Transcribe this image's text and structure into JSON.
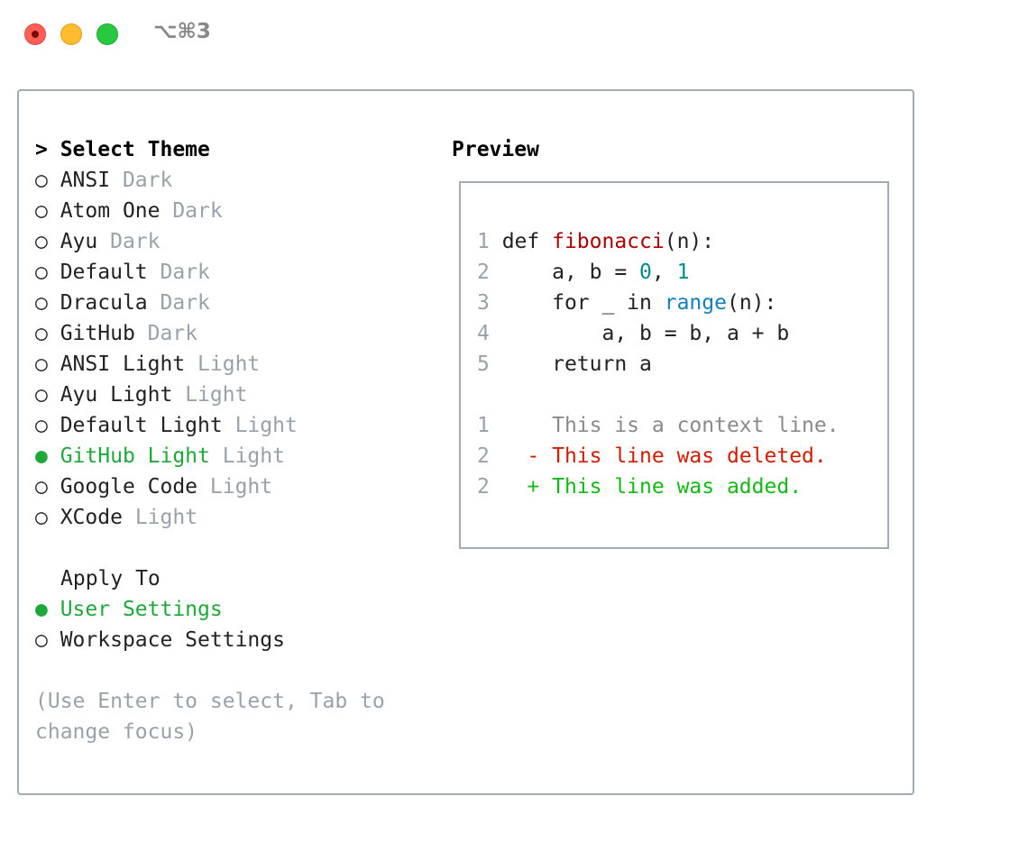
{
  "window": {
    "title": "⌥⌘3"
  },
  "themes": {
    "heading": "> Select Theme",
    "items": [
      {
        "name": "ANSI",
        "variant": "Dark",
        "selected": false
      },
      {
        "name": "Atom One",
        "variant": "Dark",
        "selected": false
      },
      {
        "name": "Ayu",
        "variant": "Dark",
        "selected": false
      },
      {
        "name": "Default",
        "variant": "Dark",
        "selected": false
      },
      {
        "name": "Dracula",
        "variant": "Dark",
        "selected": false
      },
      {
        "name": "GitHub",
        "variant": "Dark",
        "selected": false
      },
      {
        "name": "ANSI Light",
        "variant": "Light",
        "selected": false
      },
      {
        "name": "Ayu Light",
        "variant": "Light",
        "selected": false
      },
      {
        "name": "Default Light",
        "variant": "Light",
        "selected": false
      },
      {
        "name": "GitHub Light",
        "variant": "Light",
        "selected": true
      },
      {
        "name": "Google Code",
        "variant": "Light",
        "selected": false
      },
      {
        "name": "XCode",
        "variant": "Light",
        "selected": false
      }
    ]
  },
  "apply": {
    "heading": "Apply To",
    "items": [
      {
        "name": "User Settings",
        "selected": true
      },
      {
        "name": "Workspace Settings",
        "selected": false
      }
    ]
  },
  "hint": [
    "(Use Enter to select, Tab to",
    "change focus)"
  ],
  "preview": {
    "heading": "Preview",
    "code": [
      {
        "n": "1",
        "parts": [
          [
            "",
            "def "
          ],
          [
            "fn",
            "fibonacci"
          ],
          [
            "",
            "(n):"
          ]
        ]
      },
      {
        "n": "2",
        "parts": [
          [
            "",
            "    a, b = "
          ],
          [
            "num",
            "0"
          ],
          [
            "",
            ", "
          ],
          [
            "num",
            "1"
          ]
        ]
      },
      {
        "n": "3",
        "parts": [
          [
            "",
            "    for _ in "
          ],
          [
            "bi",
            "range"
          ],
          [
            "",
            "(n):"
          ]
        ]
      },
      {
        "n": "4",
        "parts": [
          [
            "",
            "        a, b = b, a + b"
          ]
        ]
      },
      {
        "n": "5",
        "parts": [
          [
            "",
            "    return a"
          ]
        ]
      }
    ],
    "diff": [
      {
        "n": "1",
        "text": "     This is a context line.",
        "kind": "ctx"
      },
      {
        "n": "2",
        "text": "   - This line was deleted.",
        "kind": "del"
      },
      {
        "n": "2",
        "text": "   + This line was added.",
        "kind": "add"
      }
    ]
  },
  "colors": {
    "selected": "#1fa83a",
    "keyword_fn": "#aa0000",
    "number": "#008b8b",
    "builtin": "#1180b8",
    "deleted": "#d01c00",
    "added": "#14b814"
  }
}
